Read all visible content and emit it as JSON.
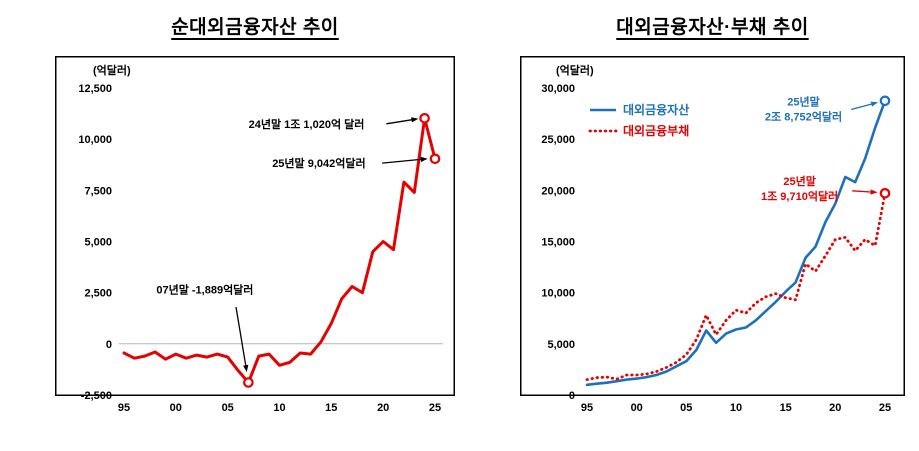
{
  "chart_data": [
    {
      "type": "line",
      "title": "순대외금융자산 추이",
      "unit_label": "(억달러)",
      "x": [
        1995,
        1996,
        1997,
        1998,
        1999,
        2000,
        2001,
        2002,
        2003,
        2004,
        2005,
        2006,
        2007,
        2008,
        2009,
        2010,
        2011,
        2012,
        2013,
        2014,
        2015,
        2016,
        2017,
        2018,
        2019,
        2020,
        2021,
        2022,
        2023,
        2024,
        2025
      ],
      "x_ticks": [
        {
          "v": 1995,
          "label": "95"
        },
        {
          "v": 2000,
          "label": "00"
        },
        {
          "v": 2005,
          "label": "05"
        },
        {
          "v": 2010,
          "label": "10"
        },
        {
          "v": 2015,
          "label": "15"
        },
        {
          "v": 2020,
          "label": "20"
        },
        {
          "v": 2025,
          "label": "25"
        }
      ],
      "ylim": [
        -2500,
        12500
      ],
      "y_ticks": [
        {
          "v": -2500,
          "label": "-2,500"
        },
        {
          "v": 0,
          "label": "0"
        },
        {
          "v": 2500,
          "label": "2,500"
        },
        {
          "v": 5000,
          "label": "5,000"
        },
        {
          "v": 7500,
          "label": "7,500"
        },
        {
          "v": 10000,
          "label": "10,000"
        },
        {
          "v": 12500,
          "label": "12,500"
        }
      ],
      "zero_line": true,
      "grid": false,
      "series": [
        {
          "id": "net-external-assets",
          "name": "순대외금융자산",
          "color": "#e60000",
          "style": "solid",
          "width": 3,
          "values": [
            -450,
            -700,
            -600,
            -400,
            -750,
            -500,
            -700,
            -550,
            -650,
            -500,
            -650,
            -1300,
            -1889,
            -600,
            -500,
            -1050,
            -900,
            -450,
            -500,
            100,
            1000,
            2200,
            2800,
            2500,
            4500,
            5000,
            4600,
            7900,
            7400,
            11020,
            9042
          ]
        }
      ],
      "markers": [
        {
          "x": 2007,
          "y": -1889,
          "color": "#e60000"
        },
        {
          "x": 2024,
          "y": 11020,
          "color": "#e60000"
        },
        {
          "x": 2025,
          "y": 9042,
          "color": "#e60000"
        }
      ],
      "annotations": [
        {
          "lines": [
            "24년말 1조 1,020억 달러"
          ],
          "color": "#000000",
          "at": [
            2012.6,
            10550
          ],
          "arrow": {
            "from": [
              2020.3,
              10750
            ],
            "to": [
              2023.4,
              11000
            ]
          }
        },
        {
          "lines": [
            "25년말 9,042억달러"
          ],
          "color": "#000000",
          "at": [
            2013.8,
            8650
          ],
          "arrow": {
            "from": [
              2019.9,
              8830
            ],
            "to": [
              2024.3,
              9042
            ]
          }
        },
        {
          "lines": [
            "07년말 -1,889억달러"
          ],
          "color": "#000000",
          "at": [
            2002.8,
            2450
          ],
          "arrow": {
            "from": [
              2005.8,
              1800
            ],
            "to": [
              2006.85,
              -1380
            ]
          }
        }
      ]
    },
    {
      "type": "line",
      "title": "대외금융자산·부채 추이",
      "unit_label": "(억달러)",
      "x": [
        1995,
        1996,
        1997,
        1998,
        1999,
        2000,
        2001,
        2002,
        2003,
        2004,
        2005,
        2006,
        2007,
        2008,
        2009,
        2010,
        2011,
        2012,
        2013,
        2014,
        2015,
        2016,
        2017,
        2018,
        2019,
        2020,
        2021,
        2022,
        2023,
        2024,
        2025
      ],
      "x_ticks": [
        {
          "v": 1995,
          "label": "95"
        },
        {
          "v": 2000,
          "label": "00"
        },
        {
          "v": 2005,
          "label": "05"
        },
        {
          "v": 2010,
          "label": "10"
        },
        {
          "v": 2015,
          "label": "15"
        },
        {
          "v": 2020,
          "label": "20"
        },
        {
          "v": 2025,
          "label": "25"
        }
      ],
      "ylim": [
        0,
        30000
      ],
      "y_ticks": [
        {
          "v": 0,
          "label": "0"
        },
        {
          "v": 5000,
          "label": "5,000"
        },
        {
          "v": 10000,
          "label": "10,000"
        },
        {
          "v": 15000,
          "label": "15,000"
        },
        {
          "v": 20000,
          "label": "20,000"
        },
        {
          "v": 25000,
          "label": "25,000"
        },
        {
          "v": 30000,
          "label": "30,000"
        }
      ],
      "zero_line": false,
      "grid": false,
      "legend": {
        "dx": 8,
        "dy": 26,
        "position": "top-left"
      },
      "series": [
        {
          "id": "external-assets",
          "name": "대외금융자산",
          "color": "#1d6fc0",
          "style": "solid",
          "width": 2.6,
          "values": [
            1000,
            1100,
            1200,
            1350,
            1500,
            1600,
            1750,
            1950,
            2300,
            2800,
            3300,
            4400,
            6300,
            5100,
            6000,
            6400,
            6600,
            7300,
            8200,
            9100,
            10100,
            11000,
            13400,
            14500,
            16900,
            18700,
            21300,
            20800,
            23100,
            26100,
            28752
          ]
        },
        {
          "id": "external-liabilities",
          "name": "대외금융부채",
          "color": "#e60000",
          "style": "dotted",
          "width": 2.8,
          "values": [
            1500,
            1700,
            1750,
            1550,
            1950,
            1950,
            2050,
            2300,
            2700,
            3200,
            3950,
            5400,
            7800,
            5900,
            7300,
            8300,
            8000,
            9000,
            9600,
            9900,
            9500,
            9300,
            12800,
            12100,
            13600,
            15200,
            15400,
            14100,
            15200,
            14600,
            19710
          ]
        }
      ],
      "markers": [
        {
          "x": 2025,
          "y": 28752,
          "color": "#1d6fc0"
        },
        {
          "x": 2025,
          "y": 19710,
          "color": "#e60000"
        }
      ],
      "annotations": [
        {
          "lines": [
            "25년말",
            "2조 8,752억달러"
          ],
          "color": "#1d6fc0",
          "at": [
            2016.8,
            28300
          ],
          "arrow": {
            "from": [
              2021.6,
              27900
            ],
            "to": [
              2024.3,
              28600
            ]
          }
        },
        {
          "lines": [
            "25년말",
            "1조 9,710억달러"
          ],
          "color": "#e60000",
          "at": [
            2016.4,
            20500
          ],
          "arrow": {
            "from": [
              2021.7,
              19950
            ],
            "to": [
              2024.25,
              19800
            ]
          }
        }
      ]
    }
  ]
}
